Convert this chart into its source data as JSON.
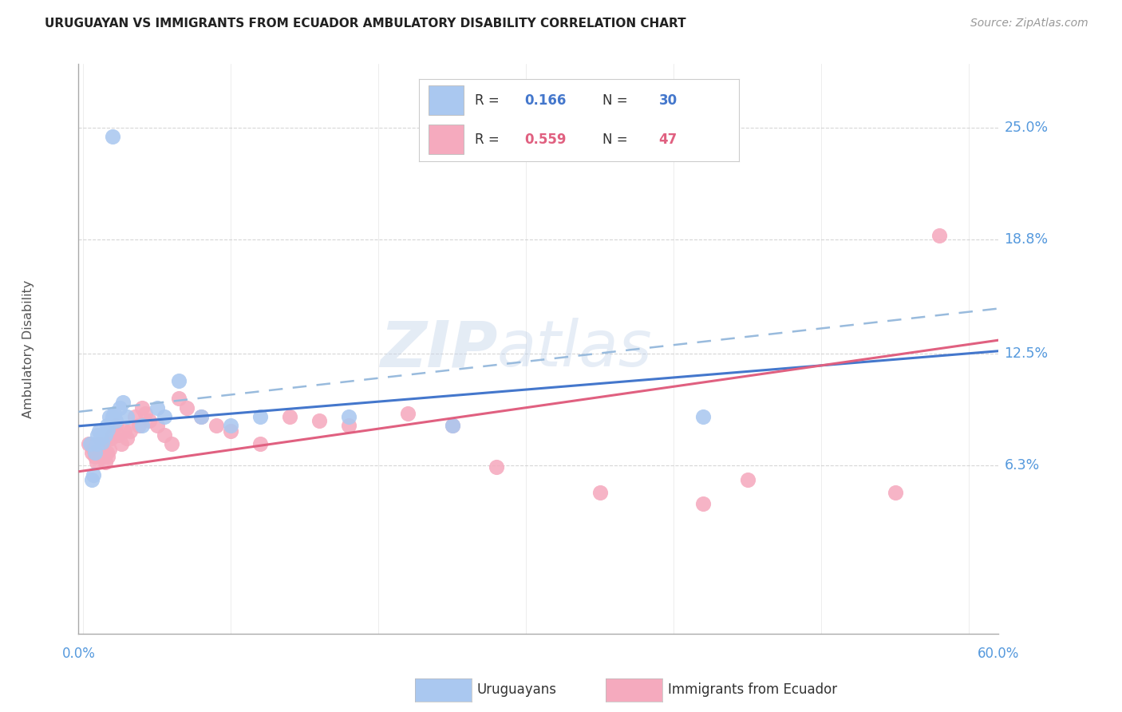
{
  "title": "URUGUAYAN VS IMMIGRANTS FROM ECUADOR AMBULATORY DISABILITY CORRELATION CHART",
  "source": "Source: ZipAtlas.com",
  "ylabel": "Ambulatory Disability",
  "background_color": "#ffffff",
  "grid_color": "#cccccc",
  "uruguayan_color": "#aac8f0",
  "ecuador_color": "#f5aabe",
  "line_blue_solid": "#4477cc",
  "line_blue_dash": "#99bbdd",
  "line_pink_solid": "#e06080",
  "axis_label_color": "#5599dd",
  "text_color": "#333333",
  "ytick_values": [
    0.063,
    0.125,
    0.188,
    0.25
  ],
  "ytick_labels": [
    "6.3%",
    "12.5%",
    "18.8%",
    "25.0%"
  ],
  "xlim": [
    -0.003,
    0.62
  ],
  "ylim": [
    -0.03,
    0.285
  ],
  "R_uru": "0.166",
  "N_uru": "30",
  "R_ecu": "0.559",
  "N_ecu": "47",
  "watermark_zip": "ZIP",
  "watermark_atlas": "atlas",
  "uruguayan_x": [
    0.005,
    0.006,
    0.007,
    0.008,
    0.009,
    0.01,
    0.011,
    0.012,
    0.013,
    0.015,
    0.016,
    0.017,
    0.018,
    0.02,
    0.021,
    0.022,
    0.025,
    0.027,
    0.03,
    0.04,
    0.05,
    0.055,
    0.065,
    0.08,
    0.1,
    0.12,
    0.18,
    0.25,
    0.42,
    0.02
  ],
  "uruguayan_y": [
    0.075,
    0.055,
    0.058,
    0.07,
    0.075,
    0.08,
    0.082,
    0.078,
    0.076,
    0.08,
    0.085,
    0.083,
    0.09,
    0.09,
    0.092,
    0.088,
    0.095,
    0.098,
    0.09,
    0.085,
    0.095,
    0.09,
    0.11,
    0.09,
    0.085,
    0.09,
    0.09,
    0.085,
    0.09,
    0.245
  ],
  "ecuador_x": [
    0.004,
    0.006,
    0.007,
    0.008,
    0.009,
    0.01,
    0.011,
    0.012,
    0.013,
    0.014,
    0.015,
    0.016,
    0.017,
    0.018,
    0.019,
    0.02,
    0.022,
    0.024,
    0.026,
    0.028,
    0.03,
    0.032,
    0.035,
    0.038,
    0.04,
    0.042,
    0.045,
    0.05,
    0.055,
    0.06,
    0.065,
    0.07,
    0.08,
    0.09,
    0.1,
    0.12,
    0.14,
    0.16,
    0.18,
    0.22,
    0.25,
    0.28,
    0.35,
    0.42,
    0.45,
    0.55,
    0.58
  ],
  "ecuador_y": [
    0.075,
    0.07,
    0.072,
    0.068,
    0.065,
    0.07,
    0.075,
    0.072,
    0.07,
    0.068,
    0.065,
    0.07,
    0.068,
    0.072,
    0.078,
    0.08,
    0.085,
    0.08,
    0.075,
    0.082,
    0.078,
    0.082,
    0.09,
    0.085,
    0.095,
    0.092,
    0.088,
    0.085,
    0.08,
    0.075,
    0.1,
    0.095,
    0.09,
    0.085,
    0.082,
    0.075,
    0.09,
    0.088,
    0.085,
    0.092,
    0.085,
    0.062,
    0.048,
    0.042,
    0.055,
    0.048,
    0.19
  ]
}
